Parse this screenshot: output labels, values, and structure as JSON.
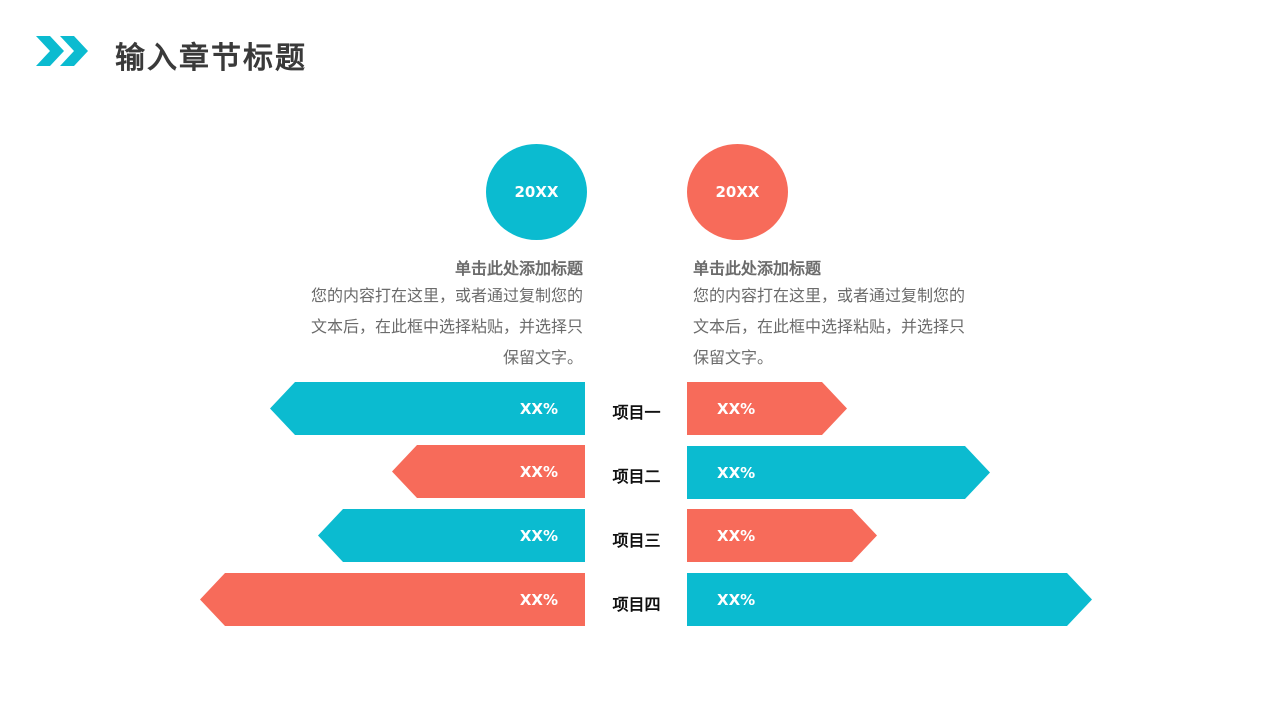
{
  "title": "输入章节标题",
  "colors": {
    "teal": "#0BBBD0",
    "coral": "#F76B5A"
  },
  "columns": [
    {
      "year": "20XX",
      "heading": "单击此处添加标题",
      "body": "您的内容打在这里，或者通过复制您的文本后，在此框中选择粘贴，并选择只保留文字。"
    },
    {
      "year": "20XX",
      "heading": "单击此处添加标题",
      "body": "您的内容打在这里，或者通过复制您的文本后，在此框中选择粘贴，并选择只保留文字。"
    }
  ],
  "items": [
    {
      "label": "项目一",
      "left": "XX%",
      "right": "XX%"
    },
    {
      "label": "项目二",
      "left": "XX%",
      "right": "XX%"
    },
    {
      "label": "项目三",
      "left": "XX%",
      "right": "XX%"
    },
    {
      "label": "项目四",
      "left": "XX%",
      "right": "XX%"
    }
  ]
}
